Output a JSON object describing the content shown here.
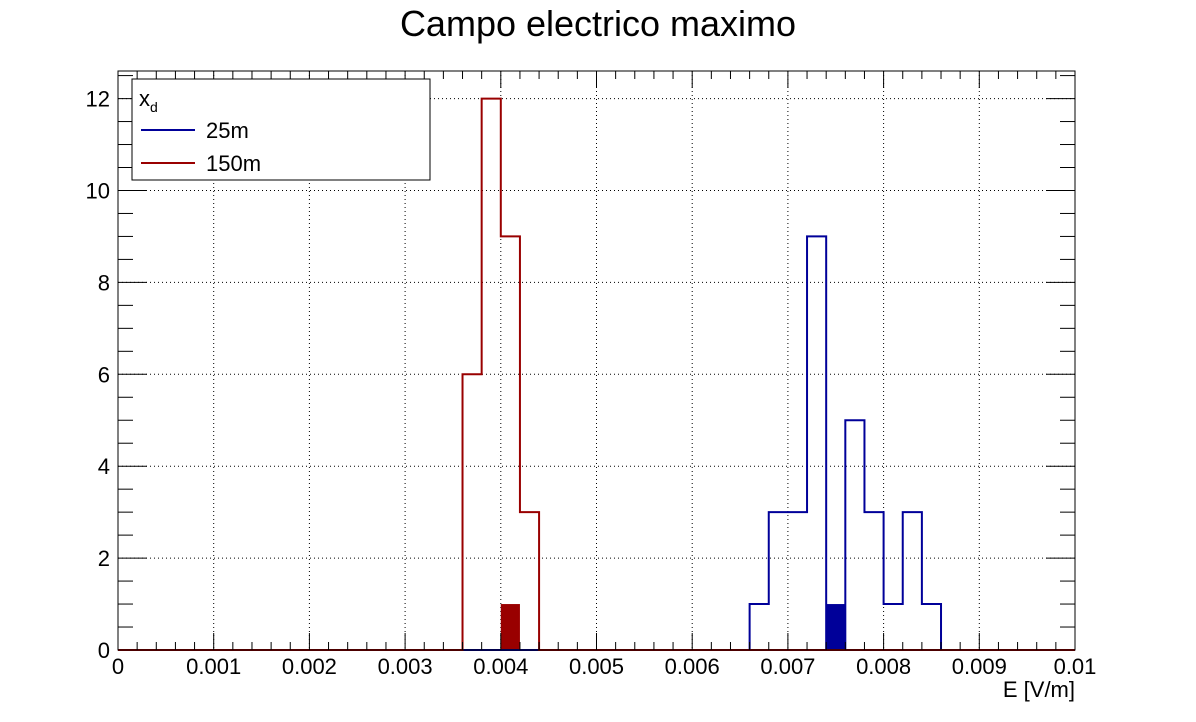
{
  "chart_data": {
    "type": "histogram",
    "title": "Campo electrico maximo",
    "xlabel": "E [V/m]",
    "ylabel": "",
    "xlim": [
      0,
      0.01
    ],
    "ylim": [
      0,
      12.6
    ],
    "bin_width": 0.0002,
    "grid": true,
    "x_ticks": [
      "0",
      "0.001",
      "0.002",
      "0.003",
      "0.004",
      "0.005",
      "0.006",
      "0.007",
      "0.008",
      "0.009",
      "0.01"
    ],
    "y_ticks": [
      "0",
      "2",
      "4",
      "6",
      "8",
      "10",
      "12"
    ],
    "legend": {
      "title": "x",
      "title_subscript": "d",
      "placement": "top-left"
    },
    "series": [
      {
        "name": "25m",
        "color": "#000099",
        "bins": [
          {
            "x": 0.0066,
            "count": 1
          },
          {
            "x": 0.0068,
            "count": 3
          },
          {
            "x": 0.007,
            "count": 3
          },
          {
            "x": 0.0072,
            "count": 9
          },
          {
            "x": 0.0074,
            "count": 0
          },
          {
            "x": 0.0076,
            "count": 5
          },
          {
            "x": 0.0078,
            "count": 3
          },
          {
            "x": 0.008,
            "count": 1
          },
          {
            "x": 0.0082,
            "count": 3
          },
          {
            "x": 0.0084,
            "count": 1
          }
        ],
        "highlight": {
          "x": 0.0074,
          "count": 1
        }
      },
      {
        "name": "150m",
        "color": "#990000",
        "bins": [
          {
            "x": 0.0036,
            "count": 6
          },
          {
            "x": 0.0038,
            "count": 12
          },
          {
            "x": 0.004,
            "count": 9
          },
          {
            "x": 0.0042,
            "count": 3
          }
        ],
        "highlight": {
          "x": 0.004,
          "count": 1
        }
      }
    ]
  }
}
